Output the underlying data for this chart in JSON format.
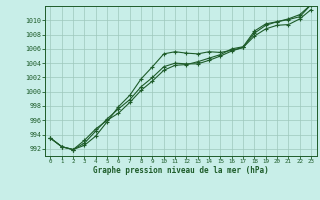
{
  "title": "Graphe pression niveau de la mer (hPa)",
  "bg_color": "#c8eee8",
  "grid_color": "#9ec8bc",
  "line_color": "#1e5c2a",
  "xlim": [
    -0.5,
    23.5
  ],
  "ylim": [
    991,
    1012
  ],
  "yticks": [
    992,
    994,
    996,
    998,
    1000,
    1002,
    1004,
    1006,
    1008,
    1010
  ],
  "xticks": [
    0,
    1,
    2,
    3,
    4,
    5,
    6,
    7,
    8,
    9,
    10,
    11,
    12,
    13,
    14,
    15,
    16,
    17,
    18,
    19,
    20,
    21,
    22,
    23
  ],
  "series1": [
    993.5,
    992.3,
    991.9,
    992.5,
    993.8,
    995.8,
    997.9,
    999.5,
    1001.8,
    1003.5,
    1005.3,
    1005.6,
    1005.4,
    1005.3,
    1005.6,
    1005.5,
    1005.8,
    1006.2,
    1007.8,
    1008.8,
    1009.3,
    1009.4,
    1010.2,
    1011.5
  ],
  "series2": [
    993.5,
    992.3,
    991.9,
    992.8,
    994.5,
    996.2,
    997.6,
    998.9,
    1000.7,
    1002.0,
    1003.5,
    1004.0,
    1003.9,
    1003.9,
    1004.4,
    1005.0,
    1005.7,
    1006.2,
    1008.2,
    1009.3,
    1009.8,
    1010.1,
    1010.5,
    1012.2
  ],
  "series3": [
    993.5,
    992.3,
    991.9,
    993.2,
    994.8,
    996.0,
    997.0,
    998.5,
    1000.2,
    1001.5,
    1003.0,
    1003.7,
    1003.8,
    1004.2,
    1004.7,
    1005.2,
    1006.0,
    1006.3,
    1008.5,
    1009.5,
    1009.8,
    1010.2,
    1010.8,
    1012.2
  ]
}
